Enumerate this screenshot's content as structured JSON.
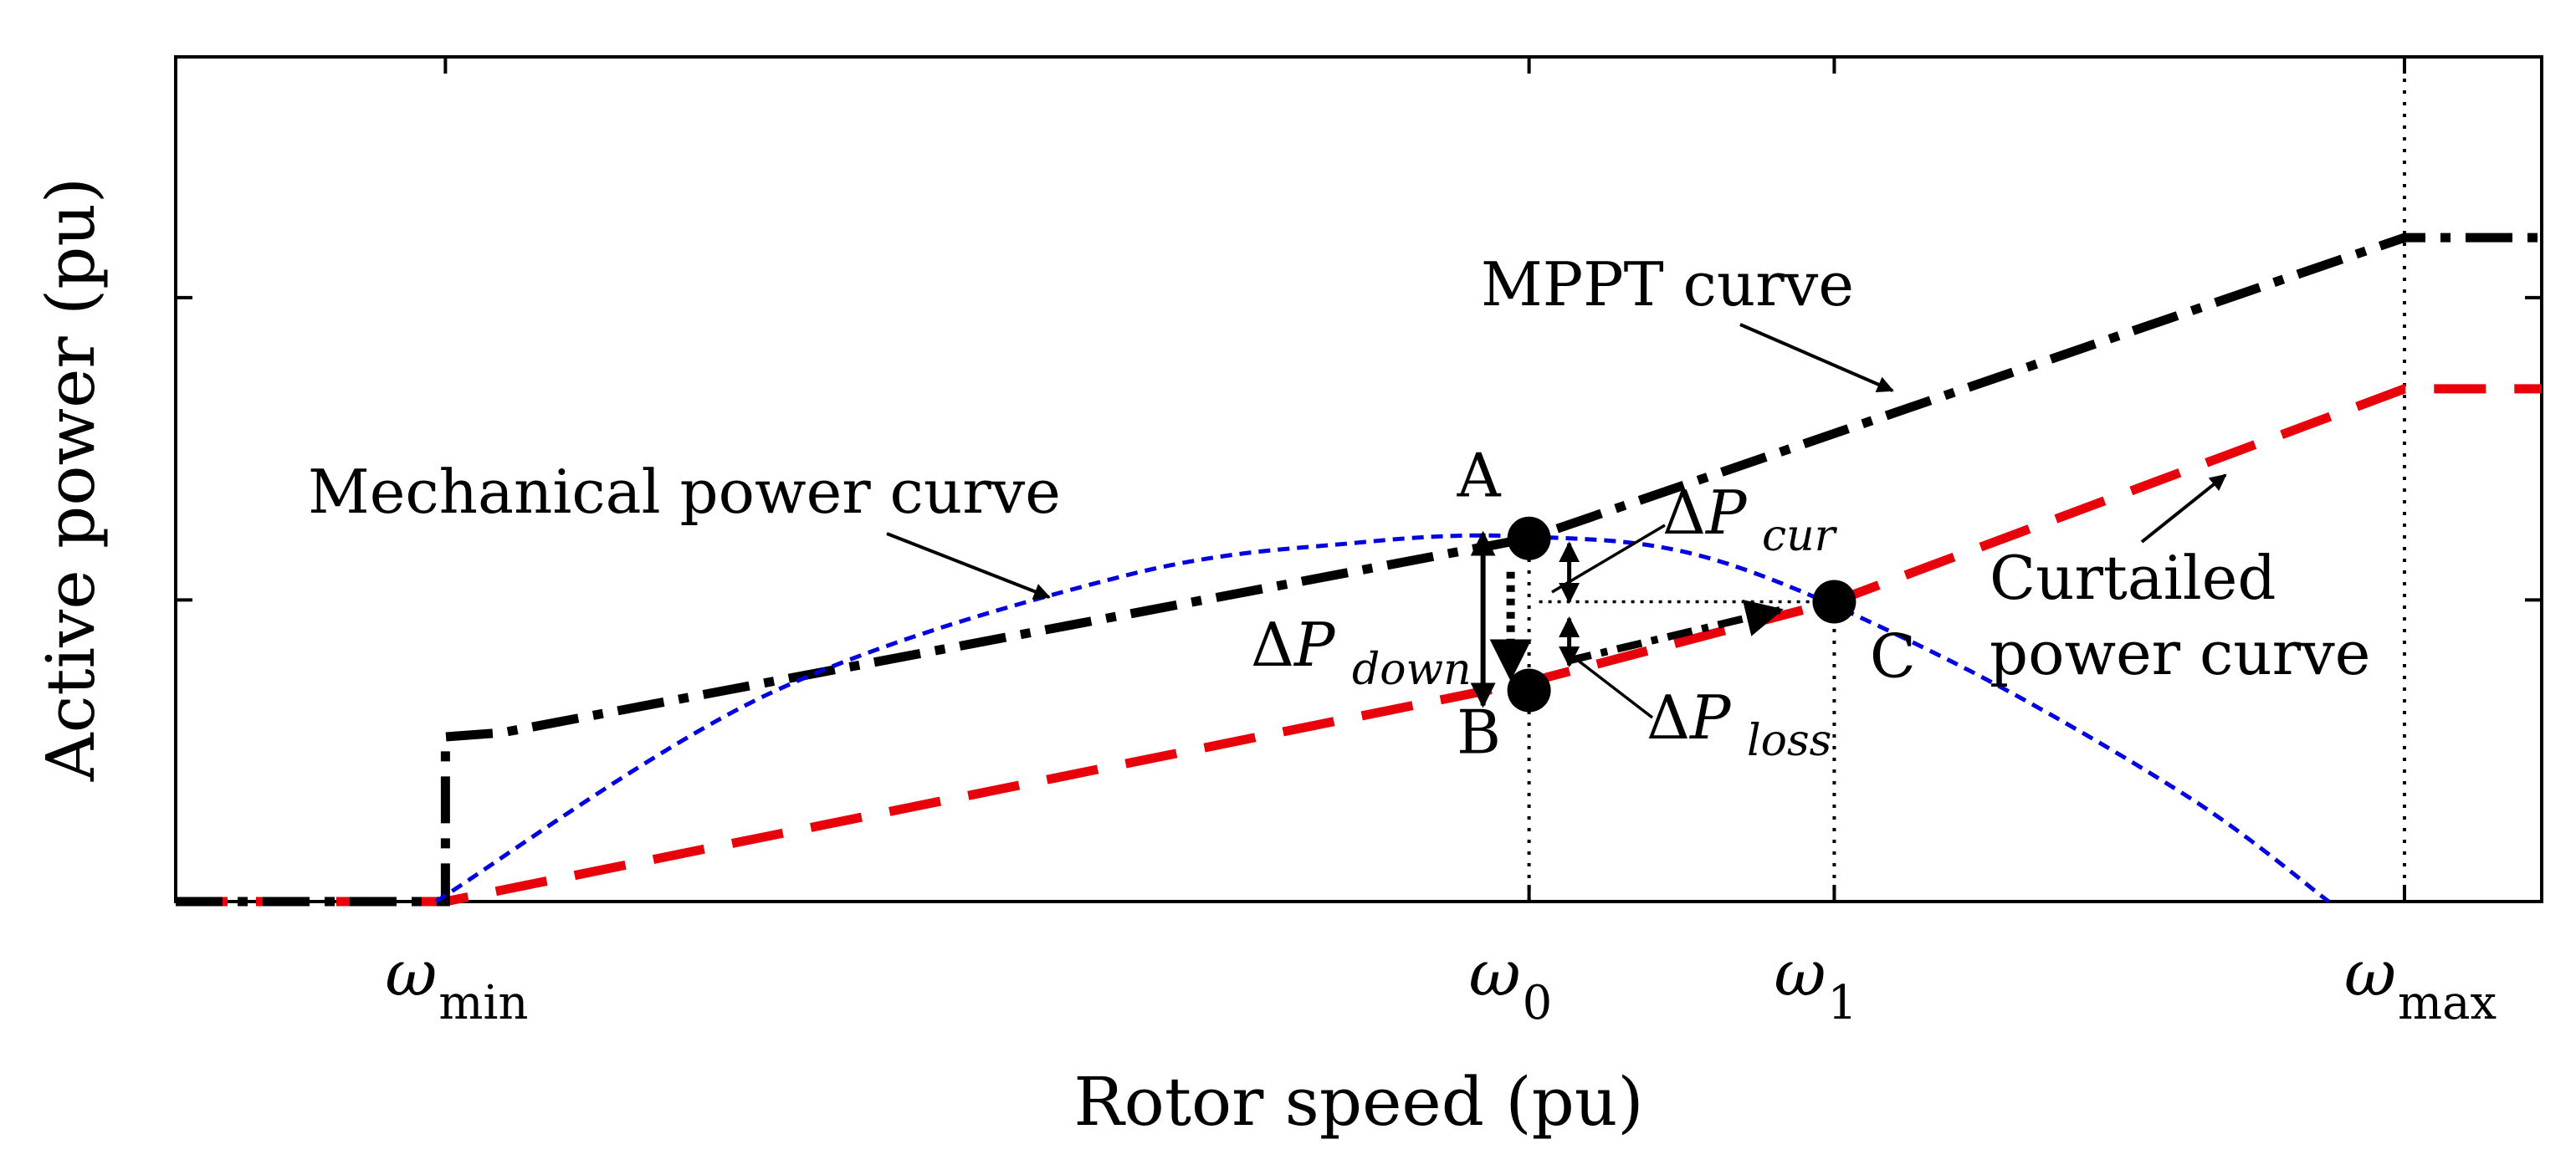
{
  "chart_data": {
    "type": "line",
    "xlabel": "Rotor speed (pu)",
    "ylabel": "Active power (pu)",
    "xlim": [
      0,
      1
    ],
    "ylim": [
      0,
      1
    ],
    "grid": false,
    "x_ticks": [
      {
        "x": 0.114,
        "symbol": "ω",
        "sub": "min"
      },
      {
        "x": 0.572,
        "symbol": "ω",
        "sub": "0"
      },
      {
        "x": 0.701,
        "symbol": "ω",
        "sub": "1"
      },
      {
        "x": 0.942,
        "symbol": "ω",
        "sub": "max"
      }
    ],
    "series": [
      {
        "name": "MPPT curve",
        "style": "dash-dot",
        "color": "#000000",
        "x": [
          0,
          0.114,
          0.114,
          0.138,
          0.572,
          0.942,
          1.0
        ],
        "y": [
          0,
          0,
          0.195,
          0.2,
          0.43,
          0.786,
          0.786
        ]
      },
      {
        "name": "Curtailed power curve",
        "style": "dashed",
        "color": "#e8000b",
        "x": [
          0,
          0.114,
          0.572,
          0.701,
          0.942,
          1.0
        ],
        "y": [
          0,
          0,
          0.26,
          0.355,
          0.607,
          0.607
        ]
      },
      {
        "name": "Mechanical power curve",
        "style": "dotted",
        "color": "#0000e0",
        "x": [
          0.11,
          0.25,
          0.4,
          0.5,
          0.572,
          0.65,
          0.75,
          0.85,
          0.91
        ],
        "y": [
          0.0,
          0.245,
          0.385,
          0.425,
          0.432,
          0.405,
          0.285,
          0.125,
          0.0
        ]
      }
    ],
    "points": [
      {
        "label": "A",
        "x": 0.572,
        "y": 0.43
      },
      {
        "label": "B",
        "x": 0.572,
        "y": 0.25
      },
      {
        "label": "C",
        "x": 0.701,
        "y": 0.355
      }
    ],
    "annotations": {
      "delta": "Δ",
      "p": "P",
      "down": "down",
      "cur": "cur",
      "loss": "loss",
      "mppt": "MPPT curve",
      "mechanical": "Mechanical power curve",
      "curtailed_line1": "Curtailed",
      "curtailed_line2": "power curve"
    }
  }
}
